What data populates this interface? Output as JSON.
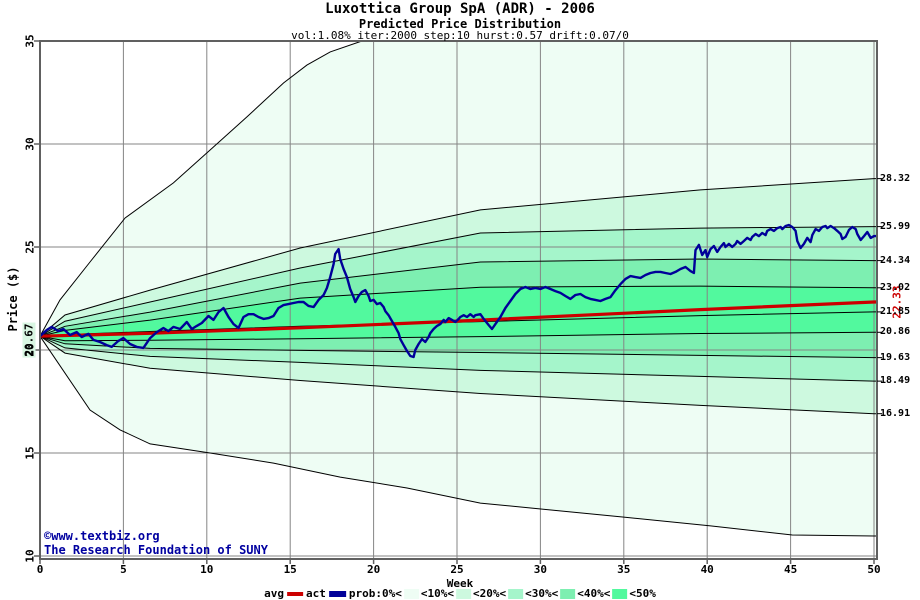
{
  "title": "Luxottica Group SpA (ADR) - 2006",
  "subtitle": "Predicted Price Distribution",
  "params_line": "vol:1.08% iter:2000 step:10 hurst:0.57 drift:0.07/0",
  "watermark": {
    "line1": "©www.textbiz.org",
    "line2": "The Research Foundation of SUNY"
  },
  "colors": {
    "mean_line": "#cc0000",
    "actual_line": "#000099",
    "grid": "#858585",
    "border": "#606060",
    "boundary": "#000000",
    "watermark": "#0000a0",
    "start_label_bg": "#d9f6e2",
    "bands": [
      "#eefdf4",
      "#cdf9df",
      "#a5f5cb",
      "#7defb1",
      "#52f99e"
    ]
  },
  "legend": {
    "avg_label": "avg",
    "act_label": "act",
    "prob_labels": [
      "prob:0%<",
      "<10%<",
      "<20%<",
      "<30%<",
      "<40%<",
      "<50%"
    ]
  },
  "chart_data": {
    "type": "area",
    "title": "Luxottica Group SpA (ADR) - 2006",
    "subtitle": "Predicted Price Distribution",
    "xlabel": "Week",
    "ylabel": "Price ($)",
    "xlim": [
      0,
      50
    ],
    "ylim": [
      10,
      35
    ],
    "x_ticks": [
      0,
      5,
      10,
      15,
      20,
      25,
      30,
      35,
      40,
      45,
      50
    ],
    "y_ticks": [
      35,
      30,
      25,
      20,
      15,
      10
    ],
    "grid": true,
    "start_price": 20.67,
    "start_price_label": "20.67",
    "mean_final_price": 22.33,
    "mean_final_label": "22.33",
    "right_axis_labels": [
      28.32,
      25.99,
      24.34,
      23.02,
      21.85,
      20.86,
      19.63,
      18.49,
      16.91
    ],
    "band_percent_edges": [
      0,
      10,
      20,
      30,
      40,
      50
    ],
    "fan_bands": [
      {
        "prob": "0-10",
        "upper": [
          [
            0,
            20.67
          ],
          [
            1.2,
            22.43
          ],
          [
            3.0,
            24.27
          ],
          [
            5.1,
            26.41
          ],
          [
            8.0,
            28.11
          ],
          [
            10.2,
            29.71
          ],
          [
            12.4,
            31.31
          ],
          [
            14.6,
            32.96
          ],
          [
            16.0,
            33.83
          ],
          [
            17.4,
            34.47
          ],
          [
            19.3,
            35.0
          ],
          [
            19.9,
            35.3
          ]
        ],
        "lower": [
          [
            0,
            20.67
          ],
          [
            3.0,
            17.09
          ],
          [
            4.8,
            16.12
          ],
          [
            6.6,
            15.44
          ],
          [
            10.2,
            15.0
          ],
          [
            14.0,
            14.51
          ],
          [
            18.0,
            13.83
          ],
          [
            22.0,
            13.3
          ],
          [
            26.4,
            12.57
          ],
          [
            35.0,
            11.89
          ],
          [
            40.2,
            11.46
          ],
          [
            45.1,
            11.02
          ],
          [
            50,
            10.97
          ]
        ]
      },
      {
        "prob": "10-20",
        "upper": [
          [
            0,
            20.67
          ],
          [
            1.5,
            21.7
          ],
          [
            6.6,
            22.91
          ],
          [
            15.6,
            24.95
          ],
          [
            26.4,
            26.8
          ],
          [
            39.6,
            27.77
          ],
          [
            50,
            28.32
          ]
        ],
        "lower": [
          [
            0,
            20.67
          ],
          [
            1.5,
            19.85
          ],
          [
            6.6,
            19.11
          ],
          [
            15.6,
            18.52
          ],
          [
            26.4,
            17.89
          ],
          [
            39.6,
            17.31
          ],
          [
            50,
            16.91
          ]
        ]
      },
      {
        "prob": "20-30",
        "upper": [
          [
            0,
            20.67
          ],
          [
            1.5,
            21.4
          ],
          [
            6.6,
            22.33
          ],
          [
            15.6,
            23.98
          ],
          [
            26.4,
            25.68
          ],
          [
            39.6,
            25.92
          ],
          [
            50,
            25.99
          ]
        ],
        "lower": [
          [
            0,
            20.67
          ],
          [
            1.5,
            20.1
          ],
          [
            6.6,
            19.69
          ],
          [
            15.6,
            19.4
          ],
          [
            26.4,
            19.01
          ],
          [
            39.6,
            18.72
          ],
          [
            50,
            18.49
          ]
        ]
      },
      {
        "prob": "30-40",
        "upper": [
          [
            0,
            20.67
          ],
          [
            1.5,
            21.15
          ],
          [
            6.6,
            21.84
          ],
          [
            15.6,
            23.25
          ],
          [
            26.4,
            24.27
          ],
          [
            39.6,
            24.42
          ],
          [
            50,
            24.34
          ]
        ],
        "lower": [
          [
            0,
            20.67
          ],
          [
            1.5,
            20.3
          ],
          [
            6.6,
            20.08
          ],
          [
            15.6,
            19.98
          ],
          [
            26.4,
            19.88
          ],
          [
            39.6,
            19.74
          ],
          [
            50,
            19.63
          ]
        ]
      },
      {
        "prob": "40-50",
        "upper": [
          [
            0,
            20.67
          ],
          [
            1.5,
            20.95
          ],
          [
            6.6,
            21.45
          ],
          [
            15.6,
            22.52
          ],
          [
            26.4,
            23.05
          ],
          [
            39.6,
            23.1
          ],
          [
            50,
            23.02
          ]
        ],
        "lower": [
          [
            0,
            20.67
          ],
          [
            1.5,
            20.45
          ],
          [
            6.6,
            20.47
          ],
          [
            15.6,
            20.55
          ],
          [
            26.4,
            20.65
          ],
          [
            39.6,
            20.8
          ],
          [
            50,
            20.86
          ]
        ]
      }
    ],
    "median_series": [
      [
        0,
        20.67
      ],
      [
        1.5,
        20.75
      ],
      [
        6.6,
        20.9
      ],
      [
        15.6,
        21.15
      ],
      [
        26.4,
        21.38
      ],
      [
        39.6,
        21.67
      ],
      [
        50,
        21.85
      ]
    ],
    "mean_series": [
      [
        0,
        20.67
      ],
      [
        6.6,
        20.81
      ],
      [
        15.6,
        21.08
      ],
      [
        26.4,
        21.45
      ],
      [
        39.6,
        21.96
      ],
      [
        50,
        22.33
      ]
    ],
    "actual_series": [
      [
        0,
        20.67
      ],
      [
        0.4,
        20.97
      ],
      [
        0.7,
        21.12
      ],
      [
        1.1,
        20.92
      ],
      [
        1.4,
        21.02
      ],
      [
        1.8,
        20.73
      ],
      [
        2.2,
        20.87
      ],
      [
        2.5,
        20.63
      ],
      [
        2.9,
        20.78
      ],
      [
        3.2,
        20.49
      ],
      [
        3.6,
        20.39
      ],
      [
        4.0,
        20.24
      ],
      [
        4.3,
        20.15
      ],
      [
        4.7,
        20.44
      ],
      [
        5.0,
        20.58
      ],
      [
        5.4,
        20.29
      ],
      [
        5.8,
        20.15
      ],
      [
        6.2,
        20.1
      ],
      [
        6.6,
        20.58
      ],
      [
        7.0,
        20.87
      ],
      [
        7.4,
        21.07
      ],
      [
        7.7,
        20.92
      ],
      [
        8.0,
        21.12
      ],
      [
        8.4,
        21.02
      ],
      [
        8.8,
        21.36
      ],
      [
        9.1,
        21.02
      ],
      [
        9.4,
        21.17
      ],
      [
        9.7,
        21.31
      ],
      [
        10.1,
        21.65
      ],
      [
        10.4,
        21.46
      ],
      [
        10.7,
        21.84
      ],
      [
        11.0,
        22.04
      ],
      [
        11.3,
        21.6
      ],
      [
        11.6,
        21.26
      ],
      [
        11.9,
        21.07
      ],
      [
        12.2,
        21.6
      ],
      [
        12.5,
        21.74
      ],
      [
        12.8,
        21.74
      ],
      [
        13.1,
        21.6
      ],
      [
        13.4,
        21.51
      ],
      [
        13.7,
        21.55
      ],
      [
        14.0,
        21.65
      ],
      [
        14.3,
        22.04
      ],
      [
        14.6,
        22.18
      ],
      [
        14.9,
        22.23
      ],
      [
        15.2,
        22.28
      ],
      [
        15.5,
        22.33
      ],
      [
        15.8,
        22.33
      ],
      [
        16.1,
        22.14
      ],
      [
        16.4,
        22.09
      ],
      [
        16.7,
        22.43
      ],
      [
        17.0,
        22.67
      ],
      [
        17.2,
        23.01
      ],
      [
        17.4,
        23.54
      ],
      [
        17.6,
        24.17
      ],
      [
        17.7,
        24.66
      ],
      [
        17.9,
        24.9
      ],
      [
        18.0,
        24.42
      ],
      [
        18.2,
        23.93
      ],
      [
        18.4,
        23.54
      ],
      [
        18.6,
        22.96
      ],
      [
        18.8,
        22.57
      ],
      [
        18.9,
        22.33
      ],
      [
        19.1,
        22.62
      ],
      [
        19.3,
        22.82
      ],
      [
        19.5,
        22.91
      ],
      [
        19.7,
        22.62
      ],
      [
        19.8,
        22.38
      ],
      [
        20.0,
        22.43
      ],
      [
        20.2,
        22.23
      ],
      [
        20.4,
        22.28
      ],
      [
        20.6,
        22.09
      ],
      [
        20.7,
        21.89
      ],
      [
        20.9,
        21.69
      ],
      [
        21.1,
        21.41
      ],
      [
        21.3,
        21.12
      ],
      [
        21.5,
        20.82
      ],
      [
        21.6,
        20.53
      ],
      [
        21.8,
        20.24
      ],
      [
        22.0,
        19.95
      ],
      [
        22.2,
        19.71
      ],
      [
        22.4,
        19.66
      ],
      [
        22.5,
        20.0
      ],
      [
        22.7,
        20.29
      ],
      [
        22.9,
        20.53
      ],
      [
        23.1,
        20.39
      ],
      [
        23.3,
        20.63
      ],
      [
        23.4,
        20.82
      ],
      [
        23.6,
        21.02
      ],
      [
        23.8,
        21.17
      ],
      [
        24.0,
        21.26
      ],
      [
        24.2,
        21.46
      ],
      [
        24.3,
        21.36
      ],
      [
        24.5,
        21.55
      ],
      [
        24.7,
        21.46
      ],
      [
        24.9,
        21.36
      ],
      [
        25.1,
        21.51
      ],
      [
        25.2,
        21.6
      ],
      [
        25.4,
        21.69
      ],
      [
        25.6,
        21.6
      ],
      [
        25.8,
        21.74
      ],
      [
        26.0,
        21.6
      ],
      [
        26.1,
        21.69
      ],
      [
        26.4,
        21.74
      ],
      [
        26.6,
        21.51
      ],
      [
        26.9,
        21.21
      ],
      [
        27.1,
        21.02
      ],
      [
        27.3,
        21.26
      ],
      [
        27.6,
        21.6
      ],
      [
        27.9,
        22.04
      ],
      [
        28.2,
        22.38
      ],
      [
        28.5,
        22.72
      ],
      [
        28.8,
        22.96
      ],
      [
        29.1,
        23.06
      ],
      [
        29.4,
        22.96
      ],
      [
        29.7,
        23.01
      ],
      [
        30.0,
        22.96
      ],
      [
        30.3,
        23.06
      ],
      [
        30.6,
        22.96
      ],
      [
        30.9,
        22.86
      ],
      [
        31.2,
        22.77
      ],
      [
        31.5,
        22.62
      ],
      [
        31.8,
        22.48
      ],
      [
        32.1,
        22.67
      ],
      [
        32.4,
        22.72
      ],
      [
        32.7,
        22.57
      ],
      [
        33.0,
        22.48
      ],
      [
        33.3,
        22.43
      ],
      [
        33.6,
        22.38
      ],
      [
        33.9,
        22.48
      ],
      [
        34.2,
        22.57
      ],
      [
        34.5,
        22.91
      ],
      [
        34.8,
        23.2
      ],
      [
        35.1,
        23.45
      ],
      [
        35.4,
        23.59
      ],
      [
        35.7,
        23.54
      ],
      [
        36.0,
        23.5
      ],
      [
        36.3,
        23.64
      ],
      [
        36.6,
        23.74
      ],
      [
        36.9,
        23.79
      ],
      [
        37.2,
        23.79
      ],
      [
        37.5,
        23.74
      ],
      [
        37.8,
        23.69
      ],
      [
        38.1,
        23.79
      ],
      [
        38.4,
        23.93
      ],
      [
        38.7,
        24.03
      ],
      [
        39.0,
        23.83
      ],
      [
        39.2,
        23.74
      ],
      [
        39.3,
        24.85
      ],
      [
        39.5,
        25.1
      ],
      [
        39.7,
        24.61
      ],
      [
        39.9,
        24.85
      ],
      [
        40.0,
        24.51
      ],
      [
        40.2,
        24.9
      ],
      [
        40.4,
        25.05
      ],
      [
        40.6,
        24.76
      ],
      [
        40.8,
        25.0
      ],
      [
        41.0,
        25.19
      ],
      [
        41.1,
        25.0
      ],
      [
        41.3,
        25.15
      ],
      [
        41.5,
        25.0
      ],
      [
        41.7,
        25.15
      ],
      [
        41.8,
        25.29
      ],
      [
        42.0,
        25.15
      ],
      [
        42.2,
        25.29
      ],
      [
        42.4,
        25.44
      ],
      [
        42.6,
        25.34
      ],
      [
        42.7,
        25.49
      ],
      [
        42.9,
        25.63
      ],
      [
        43.1,
        25.53
      ],
      [
        43.3,
        25.68
      ],
      [
        43.5,
        25.58
      ],
      [
        43.6,
        25.78
      ],
      [
        43.8,
        25.87
      ],
      [
        44.0,
        25.78
      ],
      [
        44.2,
        25.92
      ],
      [
        44.4,
        25.97
      ],
      [
        44.5,
        25.87
      ],
      [
        44.7,
        26.02
      ],
      [
        44.9,
        26.07
      ],
      [
        45.1,
        25.97
      ],
      [
        45.3,
        25.78
      ],
      [
        45.4,
        25.29
      ],
      [
        45.6,
        24.95
      ],
      [
        45.8,
        25.15
      ],
      [
        46.0,
        25.44
      ],
      [
        46.2,
        25.24
      ],
      [
        46.3,
        25.58
      ],
      [
        46.5,
        25.87
      ],
      [
        46.7,
        25.78
      ],
      [
        46.9,
        25.97
      ],
      [
        47.1,
        26.02
      ],
      [
        47.2,
        25.92
      ],
      [
        47.4,
        26.02
      ],
      [
        47.6,
        25.92
      ],
      [
        47.8,
        25.78
      ],
      [
        48.0,
        25.63
      ],
      [
        48.1,
        25.39
      ],
      [
        48.3,
        25.49
      ],
      [
        48.5,
        25.83
      ],
      [
        48.7,
        25.97
      ],
      [
        48.9,
        25.87
      ],
      [
        49.0,
        25.63
      ],
      [
        49.2,
        25.34
      ],
      [
        49.4,
        25.53
      ],
      [
        49.6,
        25.73
      ],
      [
        49.8,
        25.44
      ],
      [
        50,
        25.53
      ]
    ]
  }
}
